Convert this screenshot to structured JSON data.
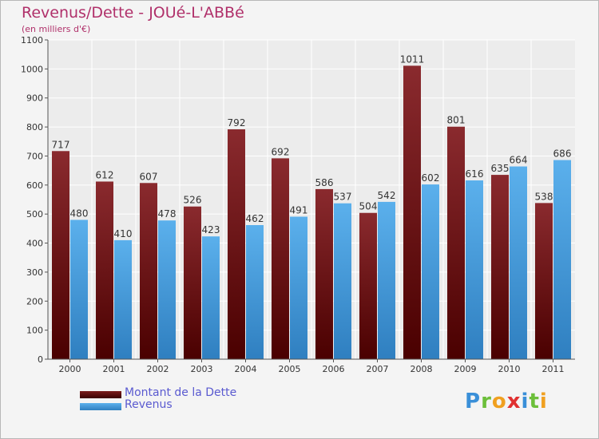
{
  "header": {
    "title": "Revenus/Dette - JOUé-L'ABBé",
    "subtitle": "(en milliers d'€)"
  },
  "legend": {
    "items": [
      {
        "label": "Montant de la Dette",
        "color": "#7a1c1c"
      },
      {
        "label": "Revenus",
        "color": "#4aa3e6"
      }
    ]
  },
  "logo": {
    "letters": [
      "P",
      "r",
      "o",
      "x",
      "i",
      "t",
      "i"
    ],
    "colors": [
      "#3a8fd8",
      "#6cbf3a",
      "#f0a020",
      "#e03030",
      "#3a8fd8",
      "#6cbf3a",
      "#f0a020"
    ]
  },
  "chart_data": {
    "type": "bar",
    "title": "Revenus/Dette - JOUé-L'ABBé",
    "ylabel": "(en milliers d'€)",
    "xlabel": "",
    "categories": [
      "2000",
      "2001",
      "2002",
      "2003",
      "2004",
      "2005",
      "2006",
      "2007",
      "2008",
      "2009",
      "2010",
      "2011"
    ],
    "series": [
      {
        "name": "Montant de la Dette",
        "values": [
          717,
          612,
          607,
          526,
          792,
          692,
          586,
          504,
          1011,
          801,
          635,
          538
        ],
        "color": "#7a1c1c"
      },
      {
        "name": "Revenus",
        "values": [
          480,
          410,
          478,
          423,
          462,
          491,
          537,
          542,
          602,
          616,
          664,
          686
        ],
        "color": "#4aa3e6"
      }
    ],
    "ylim": [
      0,
      1100
    ],
    "yticks": [
      0,
      100,
      200,
      300,
      400,
      500,
      600,
      700,
      800,
      900,
      1000,
      1100
    ],
    "grid": true,
    "legend_position": "bottom-left"
  }
}
